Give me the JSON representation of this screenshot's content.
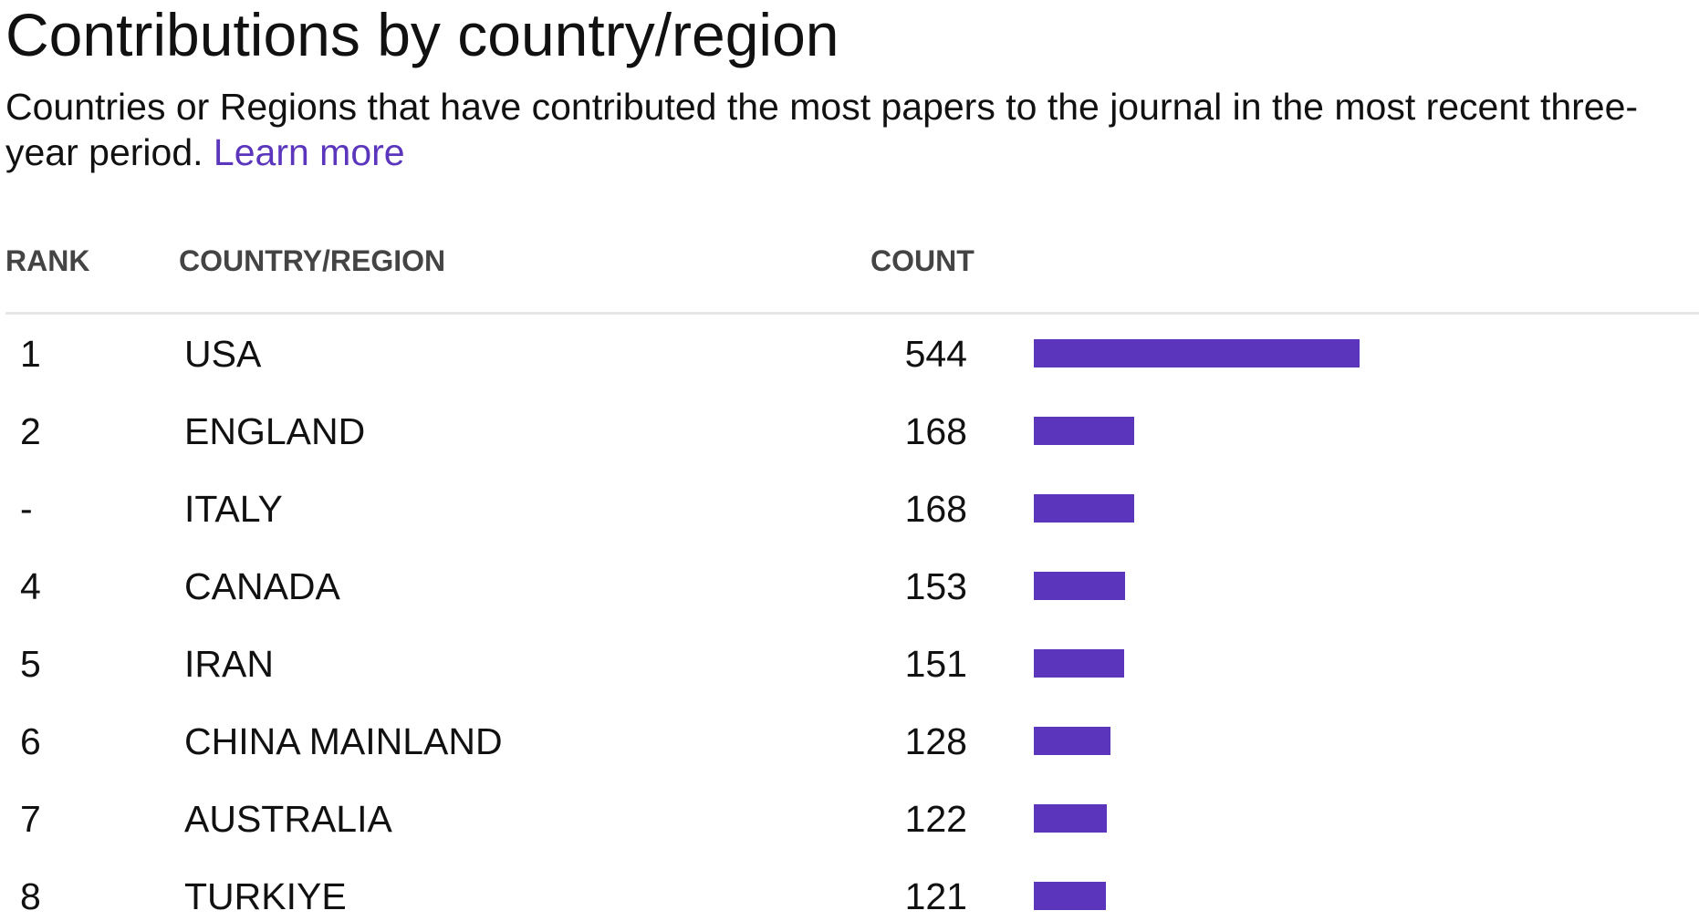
{
  "header": {
    "title": "Contributions by country/region",
    "subtitle": "Countries or Regions that have contributed the most papers to the journal in the most recent three-year period.",
    "link": "Learn more"
  },
  "table": {
    "columns": [
      "RANK",
      "COUNTRY/REGION",
      "COUNT"
    ],
    "rows": [
      {
        "rank": "1",
        "country": "USA",
        "count": 544
      },
      {
        "rank": "2",
        "country": "ENGLAND",
        "count": 168
      },
      {
        "rank": "-",
        "country": "ITALY",
        "count": 168
      },
      {
        "rank": "4",
        "country": "CANADA",
        "count": 153
      },
      {
        "rank": "5",
        "country": "IRAN",
        "count": 151
      },
      {
        "rank": "6",
        "country": "CHINA MAINLAND",
        "count": 128
      },
      {
        "rank": "7",
        "country": "AUSTRALIA",
        "count": 122
      },
      {
        "rank": "8",
        "country": "TURKIYE",
        "count": 121
      }
    ]
  }
}
